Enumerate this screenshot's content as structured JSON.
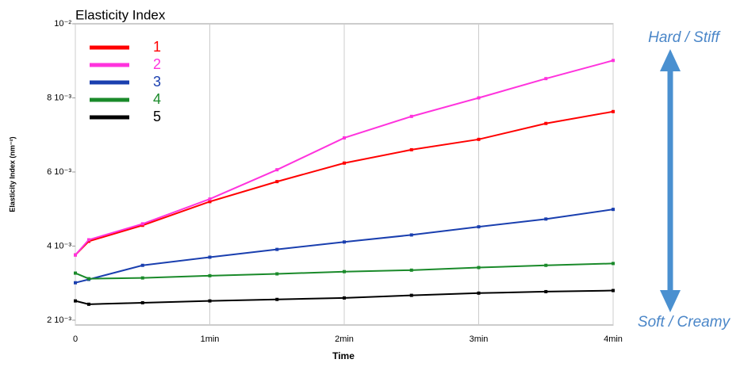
{
  "chart_data": {
    "type": "line",
    "title": "Elasticity Index",
    "x_label": "Time",
    "y_label": "Elasticity Index (nm⁻²)",
    "annotations": [
      "Hard / Stiff",
      "Soft / Creamy"
    ],
    "x": [
      0,
      0.1,
      0.5,
      1,
      1.5,
      2,
      2.5,
      3,
      3.5,
      4
    ],
    "series": [
      {
        "name": "1",
        "color": "#ff0000",
        "values": [
          0.00376,
          0.00413,
          0.00456,
          0.0052,
          0.00574,
          0.00624,
          0.0066,
          0.00688,
          0.00731,
          0.00763
        ]
      },
      {
        "name": "2",
        "color": "#ff33dd",
        "values": [
          0.00376,
          0.00417,
          0.0046,
          0.00527,
          0.00606,
          0.00692,
          0.0075,
          0.008,
          0.00852,
          0.00901
        ]
      },
      {
        "name": "3",
        "color": "#1a3faf",
        "values": [
          0.00301,
          0.0031,
          0.00348,
          0.0037,
          0.00391,
          0.00411,
          0.0043,
          0.00452,
          0.00473,
          0.00499
        ]
      },
      {
        "name": "4",
        "color": "#1a8a2a",
        "values": [
          0.00327,
          0.00312,
          0.00314,
          0.0032,
          0.00325,
          0.00331,
          0.00335,
          0.00342,
          0.00348,
          0.00353
        ]
      },
      {
        "name": "5",
        "color": "#000000",
        "values": [
          0.00252,
          0.00243,
          0.00247,
          0.00252,
          0.00256,
          0.0026,
          0.00267,
          0.00273,
          0.00277,
          0.0028
        ]
      }
    ],
    "xlim": [
      0,
      4
    ],
    "xticks": [
      0,
      {
        "value": 1,
        "label": "1min"
      },
      {
        "value": 2,
        "label": "2min"
      },
      {
        "value": 3,
        "label": "3min"
      },
      {
        "value": 4,
        "label": "4min"
      }
    ],
    "ylim": [
      0.00187,
      0.01
    ],
    "yticks": [
      {
        "value": 0.002,
        "label": "2 10⁻³"
      },
      {
        "value": 0.004,
        "label": "4 10⁻³"
      },
      {
        "value": 0.006,
        "label": "6 10⁻³"
      },
      {
        "value": 0.008,
        "label": "8 10⁻³"
      },
      {
        "value": 0.01,
        "label": "10⁻²"
      }
    ],
    "grid": "x",
    "legend": "upper-left"
  }
}
